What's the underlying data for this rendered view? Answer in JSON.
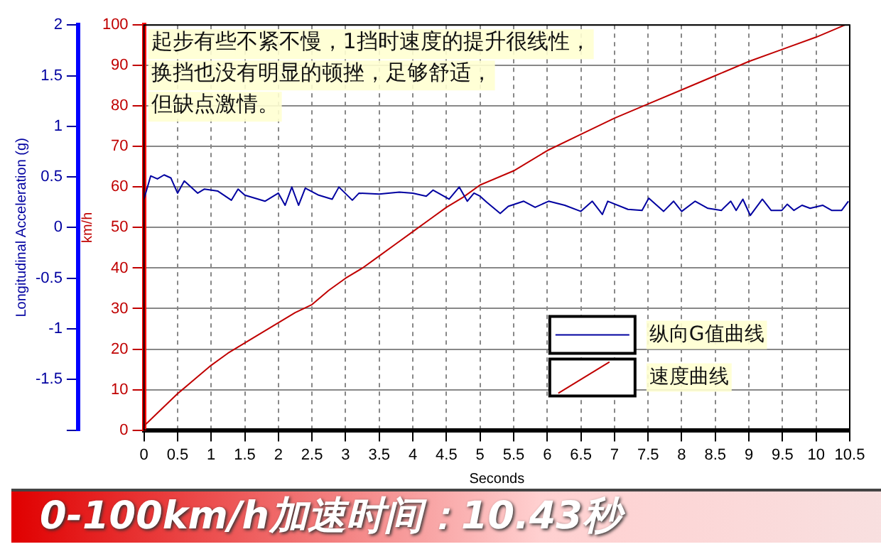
{
  "chart_data": {
    "type": "line",
    "xlabel": "Seconds",
    "ylabel": "Longitudinal Acceleration (g)",
    "y2label": "km/h",
    "annotations": [
      "起步有些不紧不慢，1挡时速度的提升很线性，换挡也没有明显的顿挫，足够舒适，但缺点激情。",
      "0-100km/h加速时间：10.43秒"
    ],
    "xlim": [
      0,
      10.5
    ],
    "xticks": [
      0,
      0.5,
      1,
      1.5,
      2,
      2.5,
      3,
      3.5,
      4,
      4.5,
      5,
      5.5,
      6,
      6.5,
      7,
      7.5,
      8,
      8.5,
      9,
      9.5,
      10,
      10.5
    ],
    "ylim": [
      -2,
      2
    ],
    "yticks": [
      {
        "value": -2,
        "label": null
      },
      -1.5,
      -1,
      -0.5,
      0,
      0.5,
      1,
      1.5,
      2
    ],
    "y2lim": [
      0,
      100
    ],
    "y2ticks": [
      0,
      10,
      20,
      30,
      40,
      50,
      60,
      70,
      80,
      90,
      100
    ],
    "grid": true,
    "legend": "bottom right",
    "marker": "none",
    "line_style": "solid",
    "series": [
      {
        "name": "纵向G值曲线",
        "color": "#0000a0",
        "axis": "y",
        "x": [
          0,
          0.1,
          0.2,
          0.3,
          0.4,
          0.5,
          0.6,
          0.8,
          0.9,
          1.1,
          1.3,
          1.4,
          1.5,
          1.8,
          2,
          2.1,
          2.2,
          2.3,
          2.4,
          2.6,
          2.8,
          2.9,
          3.1,
          3.2,
          3.5,
          3.8,
          4,
          4.2,
          4.3,
          4.54,
          4.69,
          4.81,
          4.91,
          5,
          5.1,
          5.3,
          5.42,
          5.65,
          5.82,
          6.02,
          6.26,
          6.5,
          6.67,
          6.82,
          6.9,
          7.2,
          7.41,
          7.51,
          7.73,
          7.88,
          8,
          8.2,
          8.39,
          8.59,
          8.73,
          8.81,
          8.91,
          9.02,
          9.2,
          9.33,
          9.49,
          9.57,
          9.67,
          9.79,
          9.91,
          10.1,
          10.23,
          10.38,
          10.48
        ],
        "values": [
          0.28,
          0.51,
          0.48,
          0.52,
          0.49,
          0.34,
          0.46,
          0.34,
          0.38,
          0.36,
          0.27,
          0.38,
          0.32,
          0.26,
          0.34,
          0.22,
          0.4,
          0.22,
          0.39,
          0.32,
          0.28,
          0.4,
          0.27,
          0.34,
          0.33,
          0.35,
          0.34,
          0.31,
          0.37,
          0.28,
          0.4,
          0.26,
          0.34,
          0.31,
          0.25,
          0.14,
          0.21,
          0.26,
          0.2,
          0.26,
          0.22,
          0.16,
          0.26,
          0.13,
          0.26,
          0.18,
          0.17,
          0.29,
          0.16,
          0.26,
          0.16,
          0.26,
          0.19,
          0.17,
          0.26,
          0.17,
          0.28,
          0.12,
          0.28,
          0.17,
          0.17,
          0.23,
          0.17,
          0.22,
          0.19,
          0.22,
          0.17,
          0.17,
          0.26
        ]
      },
      {
        "name": "速度曲线",
        "color": "#c00000",
        "axis": "y2",
        "x": [
          0,
          0.25,
          0.5,
          0.75,
          1,
          1.25,
          1.5,
          2,
          2.25,
          2.5,
          2.75,
          3,
          3.25,
          3.5,
          3.75,
          4,
          4.25,
          4.5,
          4.75,
          5,
          5.5,
          6,
          6.5,
          7,
          7.5,
          8,
          8.5,
          9,
          9.5,
          10,
          10.43
        ],
        "values": [
          1,
          5,
          9,
          12.5,
          16,
          19,
          21.5,
          26.5,
          29,
          31,
          34.5,
          37.5,
          40,
          43,
          46,
          49,
          52,
          55,
          57.5,
          60.5,
          64,
          69,
          73,
          77,
          80.5,
          84,
          87.5,
          91,
          94,
          97,
          100
        ]
      }
    ]
  }
}
